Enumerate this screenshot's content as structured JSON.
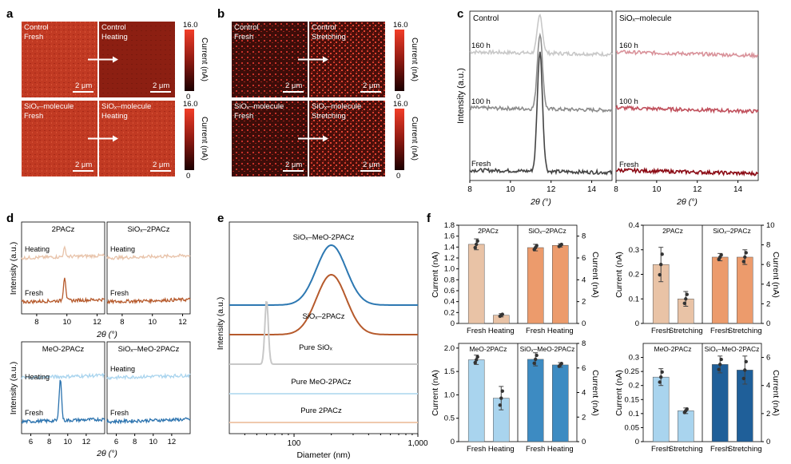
{
  "panel_letters": {
    "a": "a",
    "b": "b",
    "c": "c",
    "d": "d",
    "e": "e",
    "f": "f"
  },
  "maps": {
    "cbar_max": "16.0",
    "cbar_min": "0",
    "cbar_label": "Current (nA)",
    "scalebar": "2 μm",
    "a": [
      {
        "tl": "Control",
        "tl2": "Fresh",
        "tr": "Control",
        "tr2": "Heating",
        "base": "#b5321f"
      },
      {
        "tl": "SiOₓ–molecule",
        "tl2": "Fresh",
        "tr": "SiOₓ–molecule",
        "tr2": "Heating",
        "base": "#c8402a"
      }
    ],
    "b": [
      {
        "tl": "Control",
        "tl2": "Fresh",
        "tr": "Control",
        "tr2": "Stretching",
        "base": "#3a0d0a"
      },
      {
        "tl": "SiOₓ–molecule",
        "tl2": "Fresh",
        "tr": "SiOₓ–molecule",
        "tr2": "Stretching",
        "base": "#3a0d0a"
      }
    ]
  },
  "chart_data": [
    {
      "panel": "c",
      "type": "line",
      "ylabel": "Intensity (a.u.)",
      "xlabel": "2θ (°)",
      "xlim": [
        8,
        15
      ],
      "xticks": [
        8,
        10,
        12,
        14
      ],
      "subplots": [
        {
          "title": "Control",
          "peak_center": 11.45,
          "series": [
            {
              "name": "160 h",
              "color": "#c8c8c8",
              "peak_height": 0.35
            },
            {
              "name": "100 h",
              "color": "#8c8c8c",
              "peak_height": 0.7
            },
            {
              "name": "Fresh",
              "color": "#444444",
              "peak_height": 1.0
            }
          ]
        },
        {
          "title": "SiOₓ–molecule",
          "peak_center": null,
          "series": [
            {
              "name": "160 h",
              "color": "#d9929a",
              "peak_height": 0
            },
            {
              "name": "100 h",
              "color": "#c0505c",
              "peak_height": 0
            },
            {
              "name": "Fresh",
              "color": "#8b0a14",
              "peak_height": 0
            }
          ]
        }
      ]
    },
    {
      "panel": "d",
      "type": "line",
      "ylabel": "Intensity (a.u.)",
      "xlabel": "2θ (°)",
      "subplots": [
        {
          "title": "2PACz",
          "xlim": [
            7,
            12.5
          ],
          "xticks": [
            8,
            10,
            12
          ],
          "peak_center": 9.85,
          "series": [
            {
              "name": "Heating",
              "color": "#e8c3aa",
              "peak_height": 0.35
            },
            {
              "name": "Fresh",
              "color": "#b65a2c",
              "peak_height": 1.0
            }
          ]
        },
        {
          "title": "SiOₓ–2PACz",
          "xlim": [
            7,
            12.5
          ],
          "xticks": [
            8,
            10,
            12
          ],
          "peak_center": null,
          "series": [
            {
              "name": "Heating",
              "color": "#e8c3aa",
              "peak_height": 0
            },
            {
              "name": "Fresh",
              "color": "#b65a2c",
              "peak_height": 0
            }
          ]
        },
        {
          "title": "MeO-2PACz",
          "xlim": [
            5,
            14
          ],
          "xticks": [
            6,
            8,
            10,
            12
          ],
          "peak_center": 9.2,
          "series": [
            {
              "name": "Heating",
              "color": "#a9d4ee",
              "peak_height": 0
            },
            {
              "name": "Fresh",
              "color": "#2a72ae",
              "peak_height": 1.0
            }
          ]
        },
        {
          "title": "SiOₓ–MeO-2PACz",
          "xlim": [
            5,
            14
          ],
          "xticks": [
            6,
            8,
            10,
            12
          ],
          "peak_center": null,
          "series": [
            {
              "name": "Heating",
              "color": "#a9d4ee",
              "peak_height": 0
            },
            {
              "name": "Fresh",
              "color": "#2a72ae",
              "peak_height": 0
            }
          ]
        }
      ]
    },
    {
      "panel": "e",
      "type": "line",
      "ylabel": "Intensity (a.u.)",
      "xlabel": "Diameter (nm)",
      "xscale": "log",
      "xlim": [
        30,
        1000
      ],
      "xticks": [
        100,
        1000
      ],
      "xtick_labels": [
        "100",
        "1,000"
      ],
      "series": [
        {
          "name": "SiOₓ–MeO-2PACz",
          "color": "#2d78b2",
          "peak_center": 200,
          "width": 0.17
        },
        {
          "name": "SiOₓ–2PACz",
          "color": "#b65a2c",
          "peak_center": 200,
          "width": 0.17
        },
        {
          "name": "Pure SiOₓ",
          "color": "#c8c8c8",
          "peak_center": 60,
          "width": 0.02
        },
        {
          "name": "Pure MeO-2PACz",
          "color": "#bfe0f2",
          "peak_center": null
        },
        {
          "name": "Pure 2PACz",
          "color": "#f0c9ad",
          "peak_center": null
        }
      ]
    },
    {
      "panel": "f",
      "type": "bar",
      "ylabel": "Current (nA)",
      "subplots": [
        {
          "ylim": [
            0,
            1.8
          ],
          "yticks": [
            0,
            0.2,
            0.4,
            0.6,
            0.8,
            1.0,
            1.2,
            1.4,
            1.6,
            1.8
          ],
          "y2lim": [
            0,
            9
          ],
          "y2ticks": [
            0,
            2,
            4,
            6,
            8
          ],
          "groups": [
            {
              "title": "2PACz",
              "categories": [
                "Fresh",
                "Heating"
              ],
              "values": [
                1.45,
                0.15
              ],
              "errors": [
                0.1,
                0.03
              ],
              "color": "#e9c3a6"
            },
            {
              "title": "SiOₓ–2PACz",
              "categories": [
                "Fresh",
                "Heating"
              ],
              "values": [
                1.39,
                1.43
              ],
              "errors": [
                0.06,
                0.03
              ],
              "color": "#ec9b6c"
            }
          ]
        },
        {
          "ylim": [
            0,
            0.4
          ],
          "yticks": [
            0,
            0.1,
            0.2,
            0.3,
            0.4
          ],
          "y2lim": [
            0,
            10
          ],
          "y2ticks": [
            0,
            2,
            4,
            6,
            8,
            10
          ],
          "groups": [
            {
              "title": "2PACz",
              "categories": [
                "Fresh",
                "Stretching"
              ],
              "values": [
                0.24,
                0.1
              ],
              "errors": [
                0.07,
                0.03
              ],
              "color": "#e9c3a6"
            },
            {
              "title": "SiOₓ–2PACz",
              "categories": [
                "Fresh",
                "Stretching"
              ],
              "values": [
                0.27,
                0.27
              ],
              "errors": [
                0.015,
                0.03
              ],
              "color": "#ec9b6c"
            }
          ]
        },
        {
          "ylim": [
            0,
            2.1
          ],
          "yticks": [
            0,
            0.5,
            1.0,
            1.5,
            2.0
          ],
          "y2lim": [
            0,
            8
          ],
          "y2ticks": [
            0,
            2,
            4,
            6,
            8
          ],
          "groups": [
            {
              "title": "MeO-2PACz",
              "categories": [
                "Fresh",
                "Heating"
              ],
              "values": [
                1.75,
                0.93
              ],
              "errors": [
                0.1,
                0.25
              ],
              "color": "#a9d4ee"
            },
            {
              "title": "SiOₓ–MeO-2PACz",
              "categories": [
                "Fresh",
                "Heating"
              ],
              "values": [
                1.76,
                1.64
              ],
              "errors": [
                0.14,
                0.05
              ],
              "color": "#3d8bc2"
            }
          ]
        },
        {
          "ylim": [
            0,
            0.35
          ],
          "yticks": [
            0,
            0.05,
            0.1,
            0.15,
            0.2,
            0.25,
            0.3
          ],
          "y2lim": [
            0,
            7
          ],
          "y2ticks": [
            0,
            2,
            4,
            6
          ],
          "groups": [
            {
              "title": "MeO-2PACz",
              "categories": [
                "Fresh",
                "Stretching"
              ],
              "values": [
                0.23,
                0.11
              ],
              "errors": [
                0.03,
                0.01
              ],
              "color": "#a9d4ee"
            },
            {
              "title": "SiOₓ–MeO-2PACz",
              "categories": [
                "Fresh",
                "Stretching"
              ],
              "values": [
                0.275,
                0.255
              ],
              "errors": [
                0.03,
                0.05
              ],
              "color": "#1f5f99"
            }
          ]
        }
      ]
    }
  ]
}
